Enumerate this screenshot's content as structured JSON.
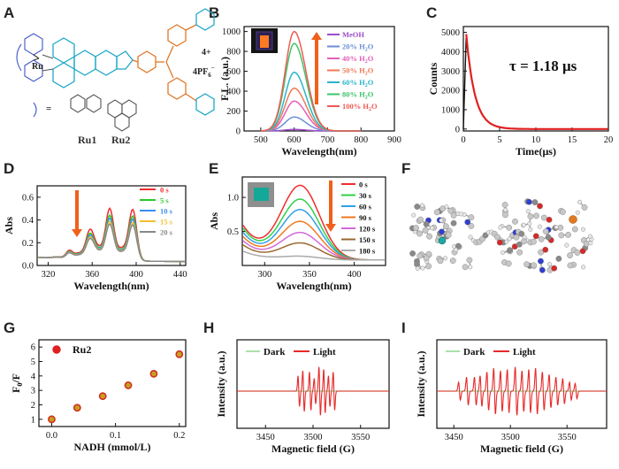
{
  "panel_letters": {
    "A": "A",
    "B": "B",
    "C": "C",
    "D": "D",
    "E": "E",
    "F": "F",
    "G": "G",
    "H": "H",
    "I": "I"
  },
  "panel_A": {
    "ru_label": "Ru",
    "charge": "4+",
    "counterion": "4PF",
    "counterion_sub": "6",
    "counterion_sup": "−",
    "ligand_eq": "=",
    "ru1": "Ru1",
    "ru2": "Ru2"
  },
  "chart_data": [
    {
      "panel": "B",
      "type": "line",
      "xlabel": "Wavelength(nm)",
      "ylabel": "F.L. (a.u.)",
      "xlim": [
        450,
        900
      ],
      "ylim": [
        0,
        1050
      ],
      "xticks": [
        "500",
        "600",
        "700",
        "800",
        "900"
      ],
      "yticks": [
        "0",
        "200",
        "400",
        "600",
        "800",
        "1000"
      ],
      "peak_x": 600,
      "peak_width": 38,
      "series": [
        {
          "name": "MeOH",
          "peak": 15,
          "color": "#9b4dca"
        },
        {
          "name": "20% H2O",
          "peak": 140,
          "color": "#6b8fd6"
        },
        {
          "name": "40% H2O",
          "peak": 300,
          "color": "#e55fb5"
        },
        {
          "name": "50% H2O",
          "peak": 430,
          "color": "#f07a55"
        },
        {
          "name": "60% H2O",
          "peak": 590,
          "color": "#2bb5c9"
        },
        {
          "name": "80% H2O",
          "peak": 880,
          "color": "#3cc46a"
        },
        {
          "name": "100% H2O",
          "peak": 1000,
          "color": "#f05a55"
        }
      ],
      "legend_placement": "top-right"
    },
    {
      "panel": "C",
      "type": "line",
      "xlabel": "Time(μs)",
      "ylabel": "Counts",
      "xlim": [
        0,
        20
      ],
      "ylim": [
        -100,
        5300
      ],
      "xticks": [
        "0",
        "5",
        "10",
        "15",
        "20"
      ],
      "yticks": [
        "0",
        "1000",
        "2000",
        "3000",
        "4000",
        "5000"
      ],
      "peak_time": 0.4,
      "peak_counts": 4900,
      "tau": 1.18,
      "annotation": "τ = 1.18 μs",
      "series": [
        {
          "color": "#e02020"
        },
        {
          "color": "#111111"
        }
      ]
    },
    {
      "panel": "D",
      "type": "line",
      "xlabel": "Wavelength(nm)",
      "ylabel": "Abs",
      "xlim": [
        310,
        445
      ],
      "ylim": [
        0,
        0.7
      ],
      "xticks": [
        "320",
        "360",
        "400",
        "440"
      ],
      "yticks": [
        "0.0",
        "0.2",
        "0.4",
        "0.6"
      ],
      "peaks": [
        {
          "x": 339,
          "w": 4,
          "h": 0.06
        },
        {
          "x": 358,
          "w": 5,
          "h": 0.22
        },
        {
          "x": 376,
          "w": 5,
          "h": 0.42
        },
        {
          "x": 397,
          "w": 5,
          "h": 0.43
        }
      ],
      "baseline": 0.03,
      "series": [
        {
          "name": "0 s",
          "scale": 1.0,
          "color": "#ef2d2d"
        },
        {
          "name": "5 s",
          "scale": 0.87,
          "color": "#29c829"
        },
        {
          "name": "10 s",
          "scale": 0.81,
          "color": "#3b8cf0"
        },
        {
          "name": "15 s",
          "scale": 0.75,
          "color": "#f0c030"
        },
        {
          "name": "20 s",
          "scale": 0.7,
          "color": "#888888"
        }
      ]
    },
    {
      "panel": "E",
      "type": "line",
      "xlabel": "Wavelength(nm)",
      "ylabel": "Abs",
      "xlim": [
        275,
        435
      ],
      "ylim": [
        0,
        1.3
      ],
      "xticks": [
        "300",
        "350",
        "400"
      ],
      "yticks": [
        "0.5",
        "1.0"
      ],
      "peak_x": 340,
      "peak_width": 30,
      "series": [
        {
          "name": "0 s",
          "peak": 1.15,
          "tail": 0.5,
          "color": "#ef2d2d"
        },
        {
          "name": "30 s",
          "peak": 0.95,
          "tail": 0.46,
          "color": "#30d04a"
        },
        {
          "name": "60 s",
          "peak": 0.8,
          "tail": 0.4,
          "color": "#30a0e8"
        },
        {
          "name": "90 s",
          "peak": 0.63,
          "tail": 0.34,
          "color": "#f07a20"
        },
        {
          "name": "120 s",
          "peak": 0.47,
          "tail": 0.28,
          "color": "#d26ad8"
        },
        {
          "name": "150 s",
          "peak": 0.32,
          "tail": 0.22,
          "color": "#9a6a30"
        },
        {
          "name": "180 s",
          "peak": 0.13,
          "tail": 0.13,
          "color": "#aaaaaa"
        }
      ]
    },
    {
      "panel": "G",
      "type": "scatter",
      "xlabel": "NADH (mmol/L)",
      "ylabel": "F0/F",
      "xlim": [
        -0.02,
        0.21
      ],
      "ylim": [
        0.5,
        6.5
      ],
      "xticks": [
        "0.0",
        "0.1",
        "0.2"
      ],
      "yticks": [
        "1",
        "2",
        "3",
        "4",
        "5",
        "6"
      ],
      "legend": "Ru2",
      "x": [
        0,
        0.04,
        0.08,
        0.12,
        0.16,
        0.2
      ],
      "y": [
        1.0,
        1.8,
        2.6,
        3.35,
        4.15,
        5.5
      ]
    },
    {
      "panel": "H",
      "type": "line",
      "xlabel": "Magnetic field (G)",
      "ylabel": "Intensity (a.u.)",
      "xlim": [
        3420,
        3580
      ],
      "xticks": [
        "3450",
        "3500",
        "3550"
      ],
      "legend": [
        "Dark",
        "Light"
      ],
      "lines": [
        {
          "x": 3485,
          "a": 0.6
        },
        {
          "x": 3490,
          "a": 0.8
        },
        {
          "x": 3497,
          "a": 0.75
        },
        {
          "x": 3502,
          "a": 0.5
        },
        {
          "x": 3507,
          "a": 0.95
        },
        {
          "x": 3512,
          "a": 0.85
        },
        {
          "x": 3517,
          "a": 0.6
        },
        {
          "x": 3522,
          "a": 0.75
        }
      ]
    },
    {
      "panel": "I",
      "type": "line",
      "xlabel": "Magnetic field (G)",
      "ylabel": "Intensity (a.u.)",
      "xlim": [
        3435,
        3585
      ],
      "xticks": [
        "3450",
        "3500",
        "3550"
      ],
      "legend": [
        "Dark",
        "Light"
      ],
      "lines": [
        {
          "x": 3455,
          "a": 0.35
        },
        {
          "x": 3462,
          "a": 0.55
        },
        {
          "x": 3469,
          "a": 0.55
        },
        {
          "x": 3474,
          "a": 0.6
        },
        {
          "x": 3480,
          "a": 0.75
        },
        {
          "x": 3486,
          "a": 0.9
        },
        {
          "x": 3492,
          "a": 0.8
        },
        {
          "x": 3498,
          "a": 0.85
        },
        {
          "x": 3505,
          "a": 0.95
        },
        {
          "x": 3511,
          "a": 0.8
        },
        {
          "x": 3517,
          "a": 0.85
        },
        {
          "x": 3523,
          "a": 0.9
        },
        {
          "x": 3529,
          "a": 0.75
        },
        {
          "x": 3535,
          "a": 0.65
        },
        {
          "x": 3541,
          "a": 0.55
        },
        {
          "x": 3547,
          "a": 0.5
        },
        {
          "x": 3553,
          "a": 0.35
        },
        {
          "x": 3558,
          "a": 0.3
        }
      ]
    }
  ],
  "colors": {
    "arrow": "#f0601a",
    "axis": "#111111",
    "red": "#e82a2a",
    "dark_line": "#8fd68f"
  }
}
